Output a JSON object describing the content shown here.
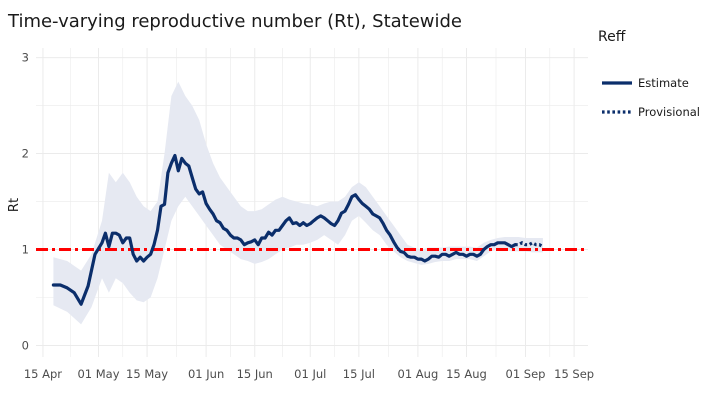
{
  "chart_data": {
    "type": "line",
    "title": "Time-varying reproductive number (Rt), Statewide",
    "xlabel": "",
    "ylabel": "Rt",
    "ylim": [
      0,
      3
    ],
    "yticks": [
      0,
      1,
      2,
      3
    ],
    "xtick_labels": [
      "15 Apr",
      "01 May",
      "15 May",
      "01 Jun",
      "15 Jun",
      "01 Jul",
      "15 Jul",
      "01 Aug",
      "15 Aug",
      "01 Sep",
      "15 Sep"
    ],
    "xtick_days": [
      0,
      16,
      30,
      47,
      61,
      77,
      91,
      108,
      122,
      139,
      153
    ],
    "x_range_days": [
      -2,
      157
    ],
    "reference_line": {
      "y": 1,
      "style": "dash-dot",
      "color": "#ff0000"
    },
    "legend": {
      "title": "Reff",
      "position": "right",
      "entries": [
        "Estimate",
        "Provisional"
      ]
    },
    "colors": {
      "line": "#0b2e6b",
      "band": "#e6e9f2",
      "reference": "#ff0000",
      "grid": "#ebebeb"
    },
    "series": [
      {
        "name": "Estimate",
        "style": "solid",
        "points": [
          [
            3,
            0.63
          ],
          [
            5,
            0.63
          ],
          [
            7,
            0.6
          ],
          [
            9,
            0.55
          ],
          [
            11,
            0.43
          ],
          [
            13,
            0.62
          ],
          [
            15,
            0.95
          ],
          [
            17,
            1.07
          ],
          [
            18,
            1.17
          ],
          [
            19,
            1.03
          ],
          [
            20,
            1.17
          ],
          [
            21,
            1.17
          ],
          [
            22,
            1.15
          ],
          [
            23,
            1.07
          ],
          [
            24,
            1.12
          ],
          [
            25,
            1.12
          ],
          [
            26,
            0.95
          ],
          [
            27,
            0.88
          ],
          [
            28,
            0.92
          ],
          [
            29,
            0.88
          ],
          [
            30,
            0.92
          ],
          [
            31,
            0.95
          ],
          [
            32,
            1.05
          ],
          [
            33,
            1.2
          ],
          [
            34,
            1.45
          ],
          [
            35,
            1.47
          ],
          [
            36,
            1.8
          ],
          [
            37,
            1.9
          ],
          [
            38,
            1.98
          ],
          [
            39,
            1.82
          ],
          [
            40,
            1.95
          ],
          [
            41,
            1.9
          ],
          [
            42,
            1.87
          ],
          [
            43,
            1.75
          ],
          [
            44,
            1.63
          ],
          [
            45,
            1.58
          ],
          [
            46,
            1.6
          ],
          [
            47,
            1.48
          ],
          [
            48,
            1.42
          ],
          [
            49,
            1.37
          ],
          [
            50,
            1.3
          ],
          [
            51,
            1.28
          ],
          [
            52,
            1.22
          ],
          [
            53,
            1.2
          ],
          [
            54,
            1.15
          ],
          [
            55,
            1.12
          ],
          [
            56,
            1.12
          ],
          [
            57,
            1.1
          ],
          [
            58,
            1.05
          ],
          [
            59,
            1.07
          ],
          [
            60,
            1.08
          ],
          [
            61,
            1.1
          ],
          [
            62,
            1.05
          ],
          [
            63,
            1.12
          ],
          [
            64,
            1.12
          ],
          [
            65,
            1.18
          ],
          [
            66,
            1.15
          ],
          [
            67,
            1.2
          ],
          [
            68,
            1.2
          ],
          [
            69,
            1.25
          ],
          [
            70,
            1.3
          ],
          [
            71,
            1.33
          ],
          [
            72,
            1.27
          ],
          [
            73,
            1.28
          ],
          [
            74,
            1.25
          ],
          [
            75,
            1.28
          ],
          [
            76,
            1.25
          ],
          [
            77,
            1.27
          ],
          [
            78,
            1.3
          ],
          [
            79,
            1.33
          ],
          [
            80,
            1.35
          ],
          [
            81,
            1.33
          ],
          [
            82,
            1.3
          ],
          [
            83,
            1.27
          ],
          [
            84,
            1.25
          ],
          [
            85,
            1.3
          ],
          [
            86,
            1.38
          ],
          [
            87,
            1.4
          ],
          [
            88,
            1.47
          ],
          [
            89,
            1.55
          ],
          [
            90,
            1.57
          ],
          [
            91,
            1.52
          ],
          [
            92,
            1.48
          ],
          [
            93,
            1.45
          ],
          [
            94,
            1.42
          ],
          [
            95,
            1.37
          ],
          [
            96,
            1.35
          ],
          [
            97,
            1.33
          ],
          [
            98,
            1.27
          ],
          [
            99,
            1.2
          ],
          [
            100,
            1.15
          ],
          [
            101,
            1.08
          ],
          [
            102,
            1.02
          ],
          [
            103,
            0.98
          ],
          [
            104,
            0.97
          ],
          [
            105,
            0.93
          ],
          [
            106,
            0.92
          ],
          [
            107,
            0.92
          ],
          [
            108,
            0.9
          ],
          [
            109,
            0.9
          ],
          [
            110,
            0.88
          ],
          [
            111,
            0.9
          ],
          [
            112,
            0.93
          ],
          [
            113,
            0.93
          ],
          [
            114,
            0.92
          ],
          [
            115,
            0.95
          ],
          [
            116,
            0.95
          ],
          [
            117,
            0.93
          ],
          [
            118,
            0.95
          ],
          [
            119,
            0.97
          ],
          [
            120,
            0.95
          ],
          [
            121,
            0.95
          ],
          [
            122,
            0.93
          ],
          [
            123,
            0.95
          ],
          [
            124,
            0.95
          ],
          [
            125,
            0.93
          ],
          [
            126,
            0.95
          ],
          [
            127,
            1.0
          ],
          [
            128,
            1.03
          ],
          [
            129,
            1.05
          ],
          [
            130,
            1.05
          ],
          [
            131,
            1.07
          ],
          [
            132,
            1.07
          ],
          [
            133,
            1.07
          ],
          [
            134,
            1.05
          ],
          [
            135,
            1.03
          ],
          [
            136,
            1.05
          ]
        ]
      },
      {
        "name": "Provisional",
        "style": "dotted",
        "points": [
          [
            136,
            1.05
          ],
          [
            137,
            1.05
          ],
          [
            138,
            1.07
          ],
          [
            139,
            1.05
          ],
          [
            140,
            1.05
          ],
          [
            141,
            1.07
          ],
          [
            142,
            1.05
          ],
          [
            143,
            1.05
          ],
          [
            144,
            1.03
          ]
        ]
      }
    ],
    "confidence_band": {
      "name": "uncertainty interval",
      "x": [
        3,
        7,
        11,
        14,
        17,
        19,
        21,
        23,
        25,
        27,
        29,
        31,
        33,
        35,
        37,
        39,
        41,
        43,
        45,
        47,
        49,
        51,
        53,
        55,
        57,
        59,
        61,
        63,
        65,
        67,
        69,
        71,
        73,
        75,
        77,
        79,
        81,
        83,
        85,
        87,
        89,
        91,
        93,
        95,
        97,
        99,
        101,
        103,
        105,
        107,
        109,
        111,
        113,
        115,
        117,
        119,
        121,
        123,
        125,
        127,
        129,
        131,
        133,
        135,
        137,
        139,
        141,
        143,
        144
      ],
      "lower": [
        0.42,
        0.35,
        0.22,
        0.4,
        0.7,
        0.55,
        0.7,
        0.65,
        0.55,
        0.47,
        0.45,
        0.5,
        0.7,
        1.0,
        1.3,
        1.45,
        1.55,
        1.45,
        1.35,
        1.25,
        1.15,
        1.05,
        1.0,
        0.95,
        0.9,
        0.88,
        0.85,
        0.87,
        0.9,
        0.95,
        1.0,
        1.02,
        1.05,
        1.05,
        1.07,
        1.1,
        1.15,
        1.1,
        1.05,
        1.15,
        1.3,
        1.35,
        1.28,
        1.2,
        1.15,
        1.05,
        0.98,
        0.92,
        0.88,
        0.86,
        0.84,
        0.85,
        0.87,
        0.88,
        0.88,
        0.9,
        0.9,
        0.9,
        0.88,
        0.93,
        0.98,
        1.0,
        1.0,
        0.98,
        0.98,
        0.98,
        0.97,
        0.97,
        0.97
      ],
      "upper": [
        0.92,
        0.88,
        0.78,
        0.95,
        1.3,
        1.8,
        1.7,
        1.8,
        1.7,
        1.55,
        1.45,
        1.4,
        1.5,
        2.0,
        2.6,
        2.75,
        2.6,
        2.5,
        2.35,
        2.1,
        1.9,
        1.75,
        1.65,
        1.55,
        1.45,
        1.4,
        1.4,
        1.42,
        1.47,
        1.52,
        1.55,
        1.52,
        1.5,
        1.48,
        1.47,
        1.45,
        1.48,
        1.5,
        1.5,
        1.55,
        1.65,
        1.7,
        1.65,
        1.55,
        1.45,
        1.35,
        1.25,
        1.15,
        1.05,
        1.02,
        1.0,
        1.02,
        1.02,
        1.02,
        1.03,
        1.03,
        1.03,
        1.03,
        1.02,
        1.07,
        1.1,
        1.12,
        1.13,
        1.13,
        1.13,
        1.12,
        1.12,
        1.12,
        1.12
      ]
    }
  }
}
